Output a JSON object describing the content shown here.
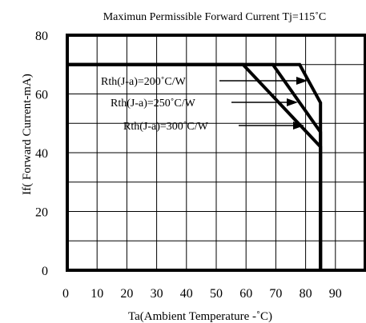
{
  "chart_data": {
    "type": "line",
    "title": "Maximun Permissible Forward Current Tj=115˚C",
    "xlabel": "Ta(Ambient Temperature -˚C)",
    "ylabel": "If( Forward Current-mA)",
    "xlim": [
      0,
      100
    ],
    "ylim": [
      0,
      80
    ],
    "x_ticks": [
      "0",
      "10",
      "20",
      "30",
      "40",
      "50",
      "60",
      "70",
      "80",
      "90"
    ],
    "y_ticks": [
      "0",
      "20",
      "40",
      "60",
      "80"
    ],
    "grid": true,
    "series": [
      {
        "name": "Rth(J-a)=200˚C/W",
        "x": [
          0,
          78,
          85,
          85
        ],
        "y": [
          70,
          70,
          57,
          0
        ]
      },
      {
        "name": "Rth(J-a)=250˚C/W",
        "x": [
          0,
          69,
          85,
          85
        ],
        "y": [
          70,
          70,
          47,
          0
        ]
      },
      {
        "name": "Rth(J-a)=300˚C/W",
        "x": [
          0,
          59,
          85,
          85
        ],
        "y": [
          70,
          70,
          42,
          0
        ]
      }
    ]
  }
}
